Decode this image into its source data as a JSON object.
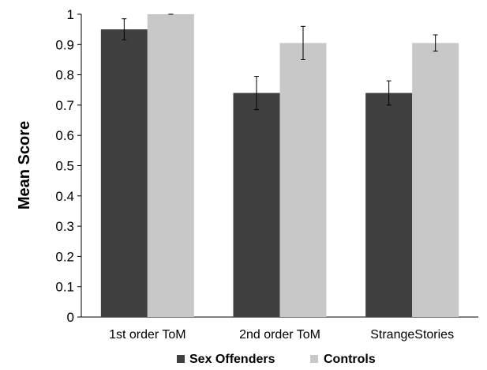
{
  "chart_data": {
    "type": "bar",
    "title": "",
    "xlabel": "",
    "ylabel": "Mean Score",
    "ylim": [
      0,
      1
    ],
    "yticks": [
      "0",
      "0.1",
      "0.2",
      "0.3",
      "0.4",
      "0.5",
      "0.6",
      "0.7",
      "0.8",
      "0.9",
      "1"
    ],
    "categories": [
      "1st order ToM",
      "2nd order ToM",
      "StrangeStories"
    ],
    "series": [
      {
        "name": "Sex Offenders",
        "color": "#404040",
        "values": [
          0.95,
          0.74,
          0.74
        ],
        "error": [
          0.035,
          0.055,
          0.04
        ]
      },
      {
        "name": "Controls",
        "color": "#c8c8c8",
        "values": [
          1.0,
          0.905,
          0.905
        ],
        "error": [
          0.0,
          0.055,
          0.027
        ]
      }
    ],
    "grid": false,
    "legend_position": "bottom"
  }
}
